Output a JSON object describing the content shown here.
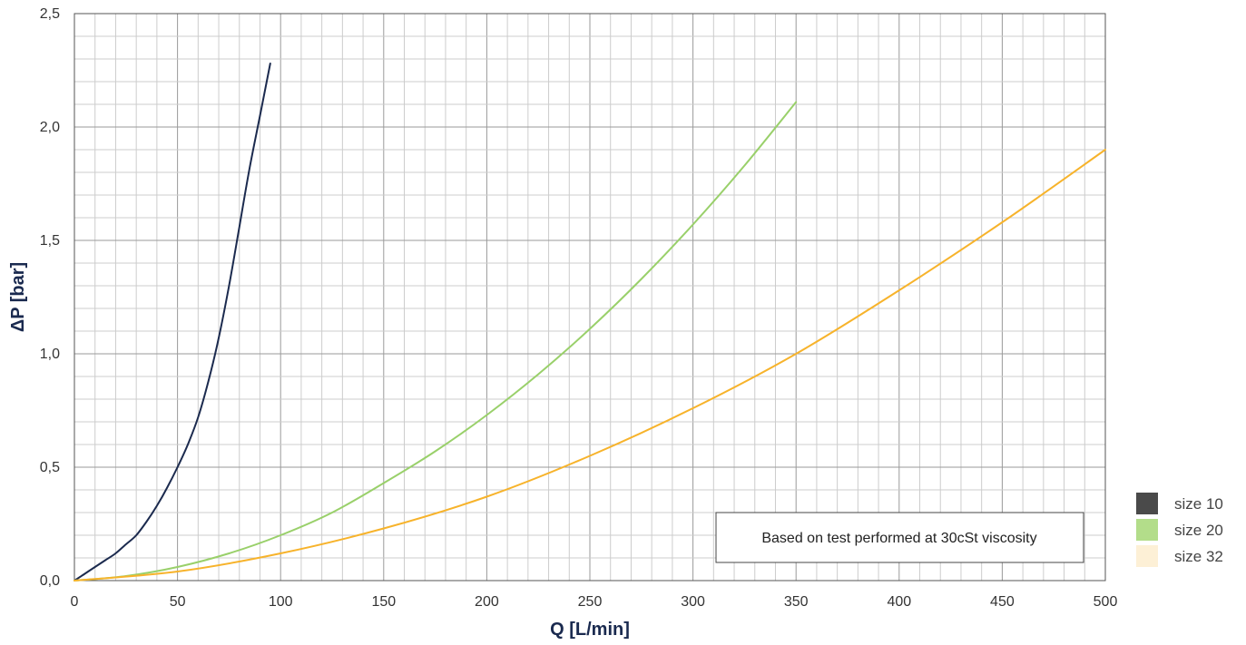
{
  "chart_data": {
    "type": "line",
    "title": "",
    "xlabel": "Q [L/min]",
    "ylabel": "ΔP [bar]",
    "xlim": [
      0,
      500
    ],
    "ylim": [
      0,
      2.5
    ],
    "x_ticks": [
      "0",
      "50",
      "100",
      "150",
      "200",
      "250",
      "300",
      "350",
      "400",
      "450",
      "500"
    ],
    "y_ticks": [
      "0,0",
      "0,5",
      "1,0",
      "1,5",
      "2,0",
      "2,5"
    ],
    "grid": true,
    "legend_position": "bottom-right",
    "annotation": "Based on test performed at 30cSt viscosity",
    "series": [
      {
        "name": "size 10",
        "line_color": "#1b2a4e",
        "legend_color": "#4a4a4a",
        "x": [
          0,
          5,
          10,
          15,
          20,
          25,
          30,
          35,
          40,
          45,
          50,
          55,
          60,
          65,
          70,
          75,
          80,
          85,
          90,
          95
        ],
        "y": [
          0,
          0.03,
          0.06,
          0.09,
          0.12,
          0.16,
          0.2,
          0.26,
          0.33,
          0.41,
          0.5,
          0.6,
          0.72,
          0.88,
          1.07,
          1.3,
          1.56,
          1.82,
          2.05,
          2.28
        ]
      },
      {
        "name": "size 20",
        "line_color": "#99d06a",
        "legend_color": "#b3dd8a",
        "x": [
          0,
          25,
          50,
          75,
          100,
          125,
          150,
          175,
          200,
          225,
          250,
          275,
          300,
          325,
          350
        ],
        "y": [
          0,
          0.02,
          0.06,
          0.12,
          0.2,
          0.3,
          0.43,
          0.57,
          0.73,
          0.91,
          1.11,
          1.33,
          1.57,
          1.83,
          2.11
        ]
      },
      {
        "name": "size 32",
        "line_color": "#f7b32b",
        "legend_color": "#fdf0d6",
        "x": [
          0,
          50,
          100,
          150,
          200,
          250,
          300,
          350,
          400,
          450,
          500
        ],
        "y": [
          0,
          0.04,
          0.12,
          0.23,
          0.37,
          0.55,
          0.76,
          1.0,
          1.28,
          1.58,
          1.9
        ]
      }
    ]
  }
}
